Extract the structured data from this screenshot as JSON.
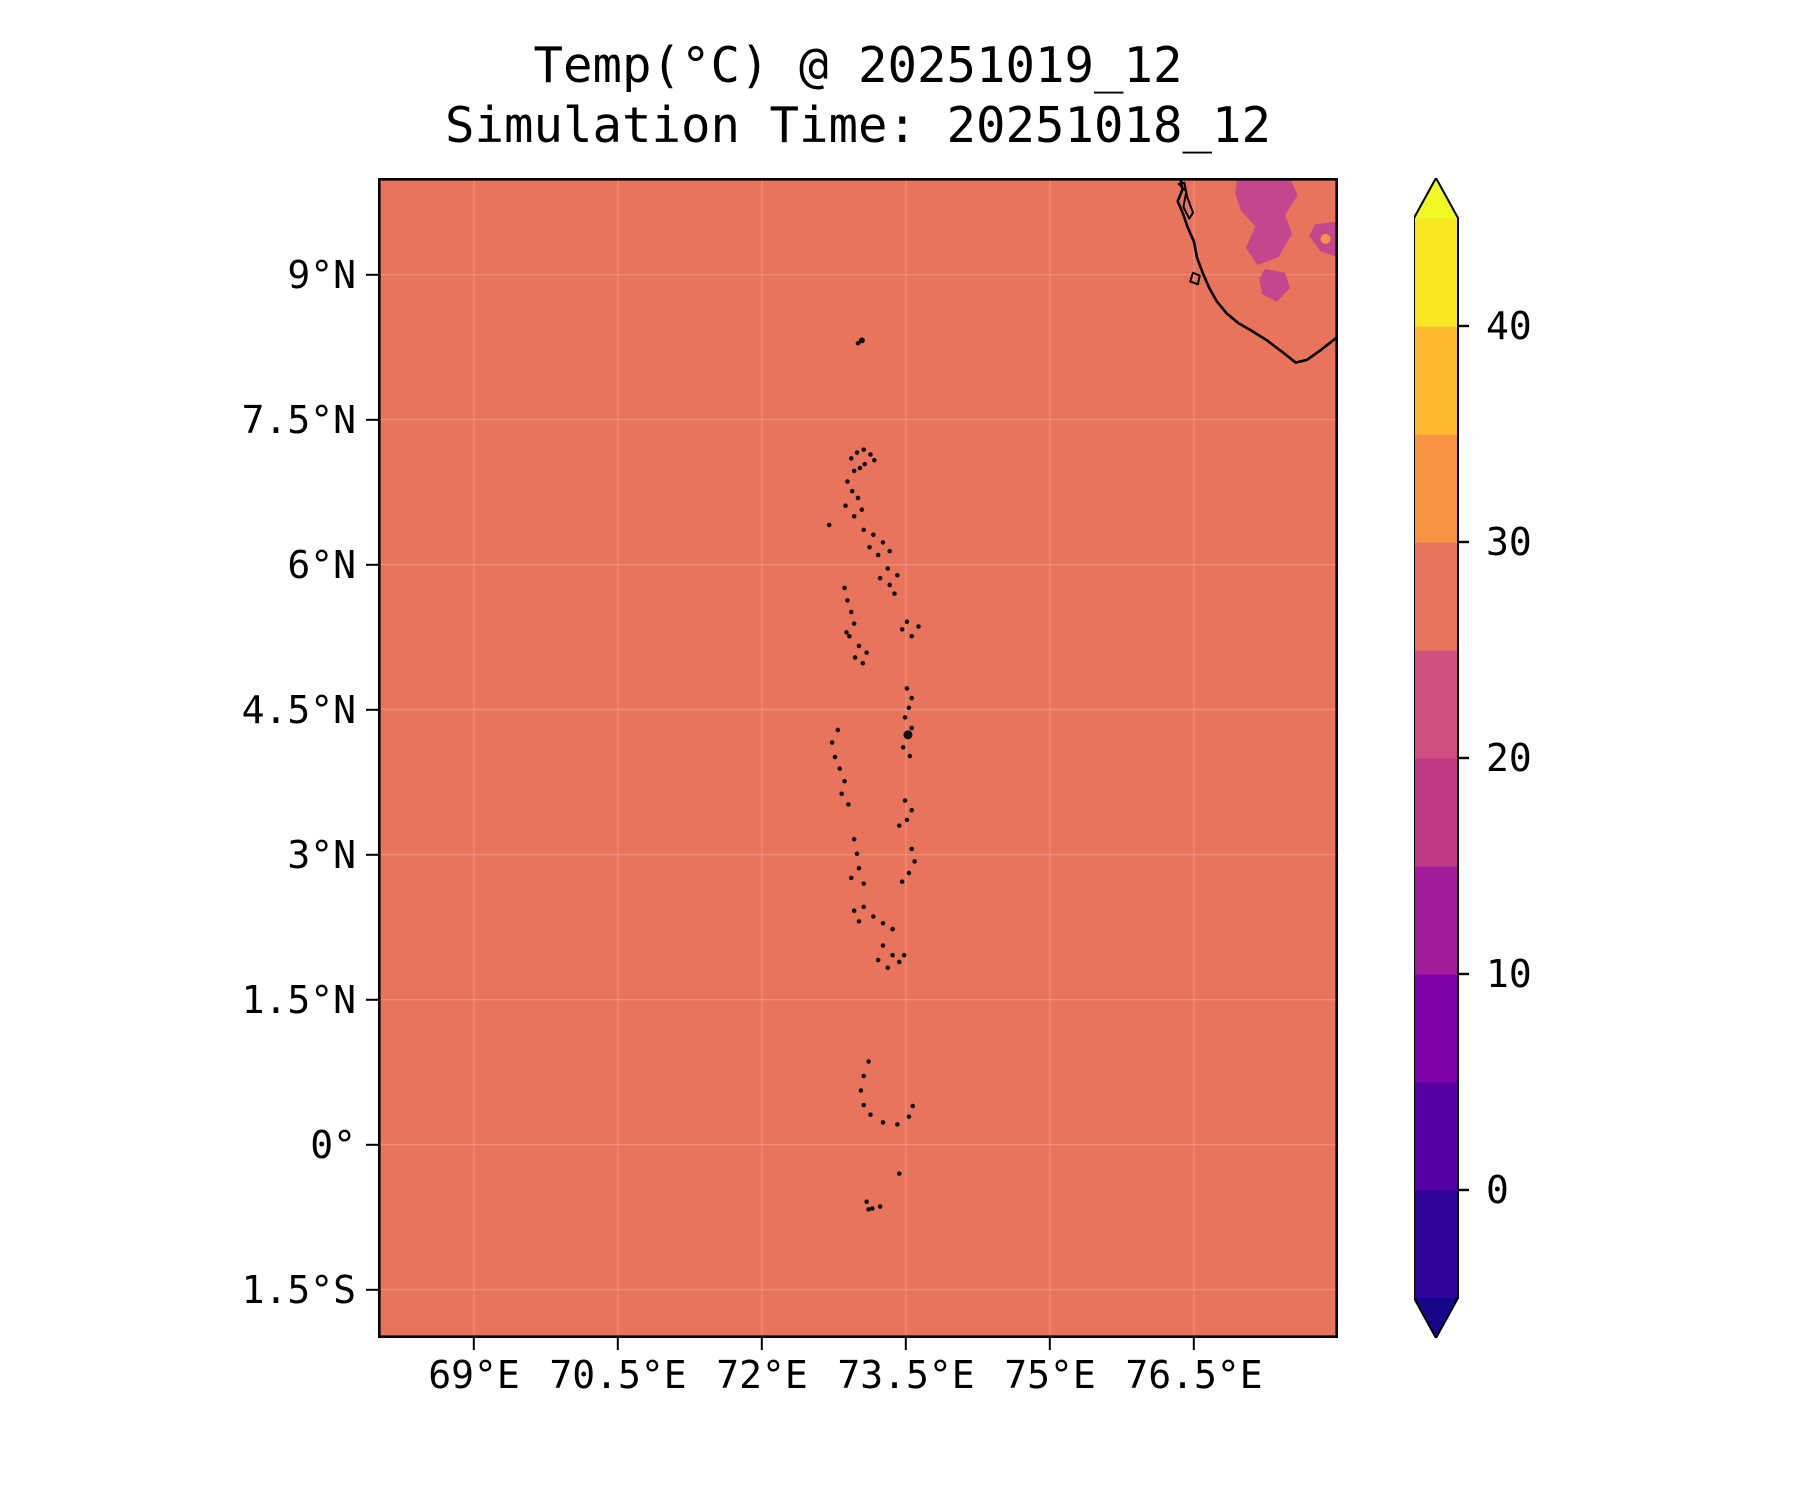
{
  "title": {
    "line1": "Temp(°C) @ 20251019_12",
    "line2": "Simulation Time: 20251018_12"
  },
  "chart_data": {
    "type": "heatmap",
    "title": "Temp(°C) @ 20251019_12",
    "subtitle": "Simulation Time: 20251018_12",
    "x_axis": {
      "tick_labels": [
        "69°E",
        "70.5°E",
        "72°E",
        "73.5°E",
        "75°E",
        "76.5°E"
      ],
      "tick_values": [
        69,
        70.5,
        72,
        73.5,
        75,
        76.5
      ],
      "range": [
        68,
        78
      ]
    },
    "y_axis": {
      "tick_labels": [
        "9°N",
        "7.5°N",
        "6°N",
        "4.5°N",
        "3°N",
        "1.5°N",
        "0°",
        "1.5°S"
      ],
      "tick_values": [
        9,
        7.5,
        6,
        4.5,
        3,
        1.5,
        0,
        -1.5
      ],
      "range": [
        -2,
        10
      ]
    },
    "grid": true,
    "map_fill_color": "#e8755b",
    "sea_surface_band_c": [
      25,
      30
    ],
    "land_patch_band_c": [
      20,
      25
    ],
    "island_color": "#101010",
    "coastline_color": "#000000",
    "colorbar": {
      "colormap": "plasma",
      "range": [
        -5,
        45
      ],
      "band_size": 5,
      "tick_labels": [
        "40",
        "30",
        "20",
        "10",
        "0"
      ],
      "tick_values": [
        40,
        30,
        20,
        10,
        0
      ],
      "under_color": "#16068a",
      "over_color": "#f0f921",
      "bands": [
        {
          "range": [
            -5,
            0
          ],
          "color": "#2f049c"
        },
        {
          "range": [
            0,
            5
          ],
          "color": "#5601a4"
        },
        {
          "range": [
            5,
            10
          ],
          "color": "#7e03a8"
        },
        {
          "range": [
            10,
            15
          ],
          "color": "#a11b9b"
        },
        {
          "range": [
            15,
            20
          ],
          "color": "#bf3984"
        },
        {
          "range": [
            20,
            25
          ],
          "color": "#d0507f"
        },
        {
          "range": [
            25,
            30
          ],
          "color": "#e8755b"
        },
        {
          "range": [
            30,
            35
          ],
          "color": "#f89441"
        },
        {
          "range": [
            35,
            40
          ],
          "color": "#fdb92f"
        },
        {
          "range": [
            40,
            45
          ],
          "color": "#f8e621"
        }
      ]
    },
    "coastline": [
      [
        76.36,
        10.0
      ],
      [
        76.38,
        9.88
      ],
      [
        76.33,
        9.76
      ],
      [
        76.39,
        9.62
      ],
      [
        76.43,
        9.5
      ],
      [
        76.5,
        9.34
      ],
      [
        76.53,
        9.18
      ],
      [
        76.59,
        9.02
      ],
      [
        76.66,
        8.86
      ],
      [
        76.74,
        8.72
      ],
      [
        76.84,
        8.6
      ],
      [
        76.96,
        8.5
      ],
      [
        77.1,
        8.42
      ],
      [
        77.26,
        8.32
      ],
      [
        77.42,
        8.2
      ],
      [
        77.56,
        8.09
      ],
      [
        77.68,
        8.12
      ],
      [
        77.82,
        8.22
      ],
      [
        78.0,
        8.36
      ]
    ],
    "lakes": [
      [
        [
          76.34,
          9.94
        ],
        [
          76.42,
          9.86
        ],
        [
          76.39,
          9.7
        ],
        [
          76.45,
          9.58
        ],
        [
          76.49,
          9.64
        ],
        [
          76.43,
          9.8
        ],
        [
          76.4,
          9.95
        ]
      ],
      [
        [
          76.49,
          9.02
        ],
        [
          76.56,
          8.99
        ],
        [
          76.54,
          8.9
        ],
        [
          76.46,
          8.93
        ]
      ]
    ],
    "land_patches": [
      {
        "color": "#c4478d",
        "points": [
          [
            76.95,
            10.0
          ],
          [
            77.5,
            10.0
          ],
          [
            77.58,
            9.82
          ],
          [
            77.45,
            9.62
          ],
          [
            77.52,
            9.42
          ],
          [
            77.38,
            9.18
          ],
          [
            77.16,
            9.1
          ],
          [
            77.04,
            9.28
          ],
          [
            77.14,
            9.5
          ],
          [
            76.99,
            9.66
          ],
          [
            76.93,
            9.84
          ]
        ]
      },
      {
        "color": "#c4478d",
        "points": [
          [
            77.24,
            9.06
          ],
          [
            77.45,
            9.02
          ],
          [
            77.5,
            8.86
          ],
          [
            77.36,
            8.72
          ],
          [
            77.21,
            8.8
          ],
          [
            77.18,
            8.96
          ]
        ]
      },
      {
        "color": "#c4478d",
        "points": [
          [
            77.76,
            9.52
          ],
          [
            78.0,
            9.55
          ],
          [
            78.0,
            9.18
          ],
          [
            77.82,
            9.24
          ],
          [
            77.7,
            9.4
          ]
        ]
      }
    ],
    "hot_spot": {
      "lon": 77.87,
      "lat": 9.37,
      "color": "#f89441",
      "radius": 5
    },
    "island_points": [
      [
        73.04,
        8.32,
        3
      ],
      [
        73.0,
        8.29
      ],
      [
        72.93,
        7.1
      ],
      [
        72.99,
        7.16
      ],
      [
        73.06,
        7.19
      ],
      [
        73.13,
        7.14
      ],
      [
        73.07,
        7.04
      ],
      [
        72.96,
        6.97
      ],
      [
        73.17,
        7.08
      ],
      [
        73.02,
        7.0
      ],
      [
        72.89,
        6.86
      ],
      [
        72.94,
        6.76
      ],
      [
        73.0,
        6.69
      ],
      [
        72.87,
        6.61
      ],
      [
        73.04,
        6.57
      ],
      [
        72.96,
        6.5
      ],
      [
        72.7,
        6.41
      ],
      [
        73.06,
        6.36
      ],
      [
        73.16,
        6.31
      ],
      [
        73.26,
        6.23
      ],
      [
        73.33,
        6.14
      ],
      [
        73.12,
        6.18
      ],
      [
        73.21,
        6.1
      ],
      [
        73.31,
        5.96
      ],
      [
        73.41,
        5.89
      ],
      [
        73.33,
        5.79
      ],
      [
        73.23,
        5.86
      ],
      [
        73.38,
        5.7
      ],
      [
        72.86,
        5.76
      ],
      [
        72.89,
        5.63
      ],
      [
        72.93,
        5.51
      ],
      [
        72.96,
        5.39
      ],
      [
        72.88,
        5.3
      ],
      [
        72.91,
        5.26
      ],
      [
        73.01,
        5.16
      ],
      [
        73.09,
        5.09
      ],
      [
        72.97,
        5.04
      ],
      [
        73.05,
        4.98
      ],
      [
        73.51,
        5.41
      ],
      [
        73.63,
        5.36
      ],
      [
        73.56,
        5.26
      ],
      [
        73.46,
        5.33
      ],
      [
        73.51,
        4.72
      ],
      [
        73.56,
        4.62
      ],
      [
        73.53,
        4.52
      ],
      [
        73.49,
        4.42
      ],
      [
        73.56,
        4.31
      ],
      [
        73.47,
        4.11
      ],
      [
        73.54,
        4.02
      ],
      [
        73.52,
        4.24,
        4.5
      ],
      [
        72.79,
        4.29
      ],
      [
        72.73,
        4.16
      ],
      [
        72.76,
        4.01
      ],
      [
        72.81,
        3.89
      ],
      [
        72.86,
        3.76
      ],
      [
        72.83,
        3.63
      ],
      [
        72.9,
        3.52
      ],
      [
        73.49,
        3.56
      ],
      [
        73.56,
        3.46
      ],
      [
        73.51,
        3.36
      ],
      [
        73.43,
        3.3
      ],
      [
        72.96,
        3.16
      ],
      [
        72.99,
        3.01
      ],
      [
        73.01,
        2.86
      ],
      [
        72.93,
        2.76
      ],
      [
        73.06,
        2.7
      ],
      [
        73.56,
        3.06
      ],
      [
        73.59,
        2.93
      ],
      [
        73.53,
        2.81
      ],
      [
        73.46,
        2.72
      ],
      [
        73.06,
        2.46
      ],
      [
        73.16,
        2.36
      ],
      [
        73.26,
        2.29
      ],
      [
        73.36,
        2.23
      ],
      [
        73.01,
        2.31
      ],
      [
        72.96,
        2.42
      ],
      [
        73.26,
        2.06
      ],
      [
        73.36,
        1.96
      ],
      [
        73.43,
        1.89
      ],
      [
        73.31,
        1.83
      ],
      [
        73.21,
        1.91
      ],
      [
        73.48,
        1.96
      ],
      [
        73.11,
        0.86
      ],
      [
        73.06,
        0.71
      ],
      [
        73.03,
        0.56
      ],
      [
        73.06,
        0.41
      ],
      [
        73.13,
        0.31
      ],
      [
        73.26,
        0.23
      ],
      [
        73.41,
        0.21
      ],
      [
        73.53,
        0.29
      ],
      [
        73.57,
        0.4
      ],
      [
        73.43,
        -0.3
      ],
      [
        73.09,
        -0.59
      ],
      [
        73.15,
        -0.66
      ],
      [
        73.23,
        -0.64
      ],
      [
        73.11,
        -0.67
      ]
    ]
  }
}
